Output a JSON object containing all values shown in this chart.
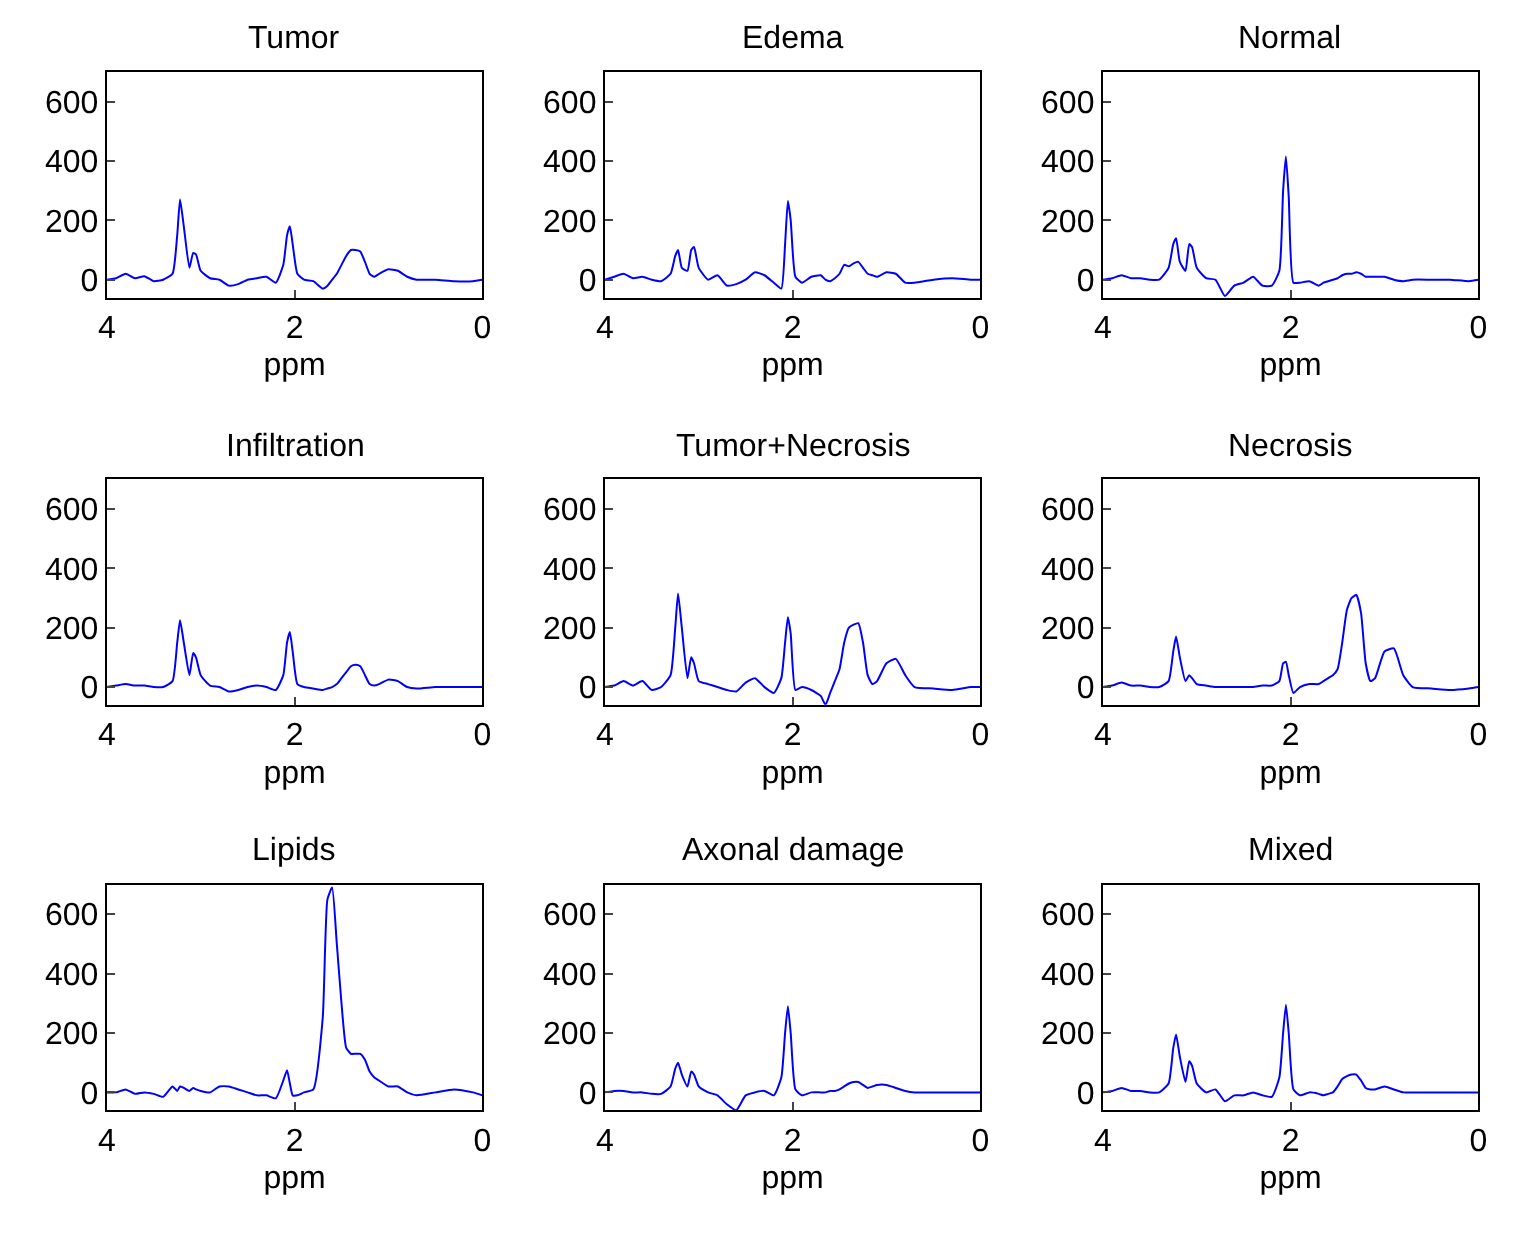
{
  "chart_data": [
    {
      "type": "line",
      "title": "Tumor",
      "xlabel": "ppm",
      "color": "#0000ff",
      "xlim": [
        4,
        0
      ],
      "xticks": [
        4,
        2,
        0
      ],
      "ylim": [
        -60,
        700
      ],
      "yticks": [
        0,
        200,
        400,
        600
      ],
      "x": [
        4,
        3.9,
        3.8,
        3.7,
        3.6,
        3.5,
        3.4,
        3.3,
        3.25,
        3.22,
        3.18,
        3.12,
        3.08,
        3.05,
        3.0,
        2.9,
        2.8,
        2.7,
        2.6,
        2.5,
        2.4,
        2.3,
        2.2,
        2.12,
        2.08,
        2.05,
        2.02,
        1.97,
        1.9,
        1.8,
        1.7,
        1.65,
        1.6,
        1.55,
        1.5,
        1.45,
        1.4,
        1.35,
        1.3,
        1.25,
        1.2,
        1.15,
        1.1,
        1.0,
        0.9,
        0.8,
        0.7,
        0.5,
        0.3,
        0.1,
        0
      ],
      "values": [
        0,
        5,
        20,
        5,
        12,
        -5,
        0,
        20,
        150,
        270,
        180,
        40,
        90,
        85,
        30,
        5,
        0,
        -20,
        -15,
        0,
        5,
        10,
        -10,
        50,
        150,
        180,
        120,
        20,
        0,
        -5,
        -30,
        -20,
        0,
        20,
        50,
        80,
        100,
        100,
        95,
        60,
        20,
        10,
        20,
        35,
        30,
        10,
        0,
        0,
        -5,
        -5,
        0
      ]
    },
    {
      "type": "line",
      "title": "Edema",
      "xlabel": "ppm",
      "color": "#0000ff",
      "xlim": [
        4,
        0
      ],
      "xticks": [
        4,
        2,
        0
      ],
      "ylim": [
        -60,
        700
      ],
      "yticks": [
        0,
        200,
        400,
        600
      ],
      "x": [
        4,
        3.9,
        3.8,
        3.7,
        3.6,
        3.5,
        3.4,
        3.3,
        3.25,
        3.22,
        3.18,
        3.12,
        3.08,
        3.05,
        3.0,
        2.9,
        2.8,
        2.7,
        2.6,
        2.5,
        2.4,
        2.3,
        2.2,
        2.12,
        2.08,
        2.05,
        2.02,
        1.97,
        1.9,
        1.8,
        1.7,
        1.65,
        1.6,
        1.55,
        1.5,
        1.45,
        1.4,
        1.35,
        1.3,
        1.25,
        1.2,
        1.15,
        1.1,
        1.0,
        0.9,
        0.8,
        0.7,
        0.5,
        0.3,
        0.1,
        0
      ],
      "values": [
        0,
        10,
        20,
        5,
        10,
        0,
        -5,
        20,
        80,
        100,
        40,
        30,
        100,
        110,
        40,
        0,
        15,
        -20,
        -15,
        0,
        25,
        15,
        -10,
        -30,
        120,
        265,
        200,
        10,
        -10,
        10,
        15,
        0,
        -5,
        5,
        20,
        50,
        45,
        55,
        60,
        40,
        20,
        15,
        10,
        25,
        20,
        -10,
        -10,
        0,
        5,
        0,
        0
      ]
    },
    {
      "type": "line",
      "title": "Normal",
      "xlabel": "ppm",
      "color": "#0000ff",
      "xlim": [
        4,
        0
      ],
      "xticks": [
        4,
        2,
        0
      ],
      "ylim": [
        -60,
        700
      ],
      "yticks": [
        0,
        200,
        400,
        600
      ],
      "x": [
        4,
        3.9,
        3.8,
        3.7,
        3.6,
        3.5,
        3.4,
        3.3,
        3.25,
        3.22,
        3.18,
        3.12,
        3.08,
        3.05,
        3.0,
        2.9,
        2.8,
        2.7,
        2.6,
        2.5,
        2.4,
        2.3,
        2.2,
        2.12,
        2.08,
        2.05,
        2.02,
        1.97,
        1.9,
        1.8,
        1.7,
        1.65,
        1.6,
        1.55,
        1.5,
        1.45,
        1.4,
        1.35,
        1.3,
        1.25,
        1.2,
        1.15,
        1.1,
        1.0,
        0.9,
        0.8,
        0.7,
        0.5,
        0.3,
        0.1,
        0
      ],
      "values": [
        0,
        5,
        15,
        5,
        5,
        0,
        0,
        40,
        120,
        140,
        60,
        30,
        120,
        110,
        40,
        5,
        0,
        -55,
        -20,
        -10,
        10,
        -20,
        -20,
        30,
        300,
        415,
        280,
        -10,
        -10,
        -5,
        -20,
        -10,
        -5,
        0,
        5,
        15,
        20,
        20,
        25,
        20,
        10,
        10,
        10,
        10,
        0,
        -5,
        0,
        0,
        0,
        -5,
        0
      ]
    },
    {
      "type": "line",
      "title": "Infiltration",
      "xlabel": "ppm",
      "color": "#0000ff",
      "xlim": [
        4,
        0
      ],
      "xticks": [
        4,
        2,
        0
      ],
      "ylim": [
        -60,
        700
      ],
      "yticks": [
        0,
        200,
        400,
        600
      ],
      "x": [
        4,
        3.9,
        3.8,
        3.7,
        3.6,
        3.5,
        3.4,
        3.3,
        3.25,
        3.22,
        3.18,
        3.12,
        3.08,
        3.05,
        3.0,
        2.9,
        2.8,
        2.7,
        2.6,
        2.5,
        2.4,
        2.3,
        2.2,
        2.12,
        2.08,
        2.05,
        2.02,
        1.97,
        1.9,
        1.8,
        1.7,
        1.65,
        1.6,
        1.55,
        1.5,
        1.45,
        1.4,
        1.35,
        1.3,
        1.25,
        1.2,
        1.15,
        1.1,
        1.0,
        0.9,
        0.8,
        0.7,
        0.5,
        0.3,
        0.1,
        0
      ],
      "values": [
        0,
        5,
        10,
        5,
        5,
        0,
        0,
        20,
        150,
        225,
        150,
        40,
        115,
        100,
        40,
        5,
        0,
        -15,
        -10,
        0,
        5,
        0,
        -10,
        40,
        150,
        185,
        120,
        10,
        0,
        -5,
        -10,
        -5,
        0,
        10,
        30,
        50,
        70,
        75,
        70,
        40,
        10,
        5,
        10,
        25,
        20,
        0,
        -5,
        0,
        0,
        0,
        0
      ]
    },
    {
      "type": "line",
      "title": "Tumor+Necrosis",
      "xlabel": "ppm",
      "color": "#0000ff",
      "xlim": [
        4,
        0
      ],
      "xticks": [
        4,
        2,
        0
      ],
      "ylim": [
        -60,
        700
      ],
      "yticks": [
        0,
        200,
        400,
        600
      ],
      "x": [
        4,
        3.9,
        3.8,
        3.7,
        3.6,
        3.5,
        3.4,
        3.3,
        3.25,
        3.22,
        3.18,
        3.12,
        3.08,
        3.05,
        3.0,
        2.9,
        2.8,
        2.7,
        2.6,
        2.5,
        2.4,
        2.3,
        2.2,
        2.12,
        2.08,
        2.05,
        2.02,
        1.97,
        1.9,
        1.8,
        1.7,
        1.65,
        1.6,
        1.55,
        1.5,
        1.45,
        1.4,
        1.35,
        1.3,
        1.25,
        1.2,
        1.15,
        1.1,
        1.0,
        0.9,
        0.8,
        0.7,
        0.5,
        0.3,
        0.1,
        0
      ],
      "values": [
        0,
        5,
        20,
        5,
        20,
        -10,
        0,
        40,
        200,
        315,
        200,
        30,
        100,
        80,
        20,
        10,
        0,
        -10,
        -15,
        15,
        30,
        0,
        -20,
        30,
        150,
        235,
        180,
        -10,
        0,
        -10,
        -30,
        -60,
        -20,
        20,
        60,
        150,
        200,
        210,
        215,
        150,
        40,
        10,
        20,
        80,
        95,
        40,
        0,
        -5,
        -10,
        0,
        0
      ]
    },
    {
      "type": "line",
      "title": "Necrosis",
      "xlabel": "ppm",
      "color": "#0000ff",
      "xlim": [
        4,
        0
      ],
      "xticks": [
        4,
        2,
        0
      ],
      "ylim": [
        -60,
        700
      ],
      "yticks": [
        0,
        200,
        400,
        600
      ],
      "x": [
        4,
        3.9,
        3.8,
        3.7,
        3.6,
        3.5,
        3.4,
        3.3,
        3.25,
        3.22,
        3.18,
        3.12,
        3.08,
        3.05,
        3.0,
        2.9,
        2.8,
        2.7,
        2.6,
        2.5,
        2.4,
        2.3,
        2.2,
        2.12,
        2.08,
        2.05,
        2.02,
        1.97,
        1.9,
        1.8,
        1.7,
        1.65,
        1.6,
        1.55,
        1.5,
        1.45,
        1.4,
        1.35,
        1.3,
        1.25,
        1.2,
        1.15,
        1.1,
        1.0,
        0.9,
        0.8,
        0.7,
        0.5,
        0.3,
        0.1,
        0
      ],
      "values": [
        0,
        5,
        15,
        5,
        5,
        0,
        0,
        20,
        120,
        170,
        100,
        20,
        40,
        30,
        10,
        5,
        0,
        0,
        0,
        0,
        0,
        5,
        5,
        20,
        80,
        85,
        40,
        -20,
        0,
        10,
        10,
        20,
        30,
        40,
        60,
        150,
        260,
        300,
        310,
        250,
        80,
        20,
        30,
        120,
        130,
        40,
        0,
        -5,
        -10,
        -5,
        0
      ]
    },
    {
      "type": "line",
      "title": "Lipids",
      "xlabel": "ppm",
      "color": "#0000ff",
      "xlim": [
        4,
        0
      ],
      "xticks": [
        4,
        2,
        0
      ],
      "ylim": [
        -60,
        700
      ],
      "yticks": [
        0,
        200,
        400,
        600
      ],
      "x": [
        4,
        3.9,
        3.8,
        3.7,
        3.6,
        3.5,
        3.4,
        3.3,
        3.25,
        3.22,
        3.18,
        3.12,
        3.08,
        3.05,
        3.0,
        2.9,
        2.8,
        2.7,
        2.6,
        2.5,
        2.4,
        2.3,
        2.2,
        2.12,
        2.08,
        2.05,
        2.02,
        1.97,
        1.9,
        1.8,
        1.7,
        1.65,
        1.6,
        1.55,
        1.5,
        1.45,
        1.4,
        1.35,
        1.3,
        1.25,
        1.2,
        1.15,
        1.1,
        1.0,
        0.9,
        0.8,
        0.7,
        0.5,
        0.3,
        0.1,
        0
      ],
      "values": [
        0,
        0,
        10,
        -5,
        0,
        -5,
        -15,
        20,
        5,
        20,
        15,
        5,
        15,
        10,
        5,
        0,
        20,
        20,
        10,
        0,
        -10,
        -10,
        -20,
        40,
        75,
        30,
        -10,
        -10,
        0,
        10,
        250,
        650,
        690,
        500,
        300,
        150,
        130,
        130,
        130,
        110,
        70,
        50,
        40,
        20,
        20,
        0,
        -10,
        0,
        10,
        0,
        -10
      ]
    },
    {
      "type": "line",
      "title": "Axonal damage",
      "xlabel": "ppm",
      "color": "#0000ff",
      "xlim": [
        4,
        0
      ],
      "xticks": [
        4,
        2,
        0
      ],
      "ylim": [
        -60,
        700
      ],
      "yticks": [
        0,
        200,
        400,
        600
      ],
      "x": [
        4,
        3.9,
        3.8,
        3.7,
        3.6,
        3.5,
        3.4,
        3.3,
        3.25,
        3.22,
        3.18,
        3.12,
        3.08,
        3.05,
        3.0,
        2.9,
        2.8,
        2.7,
        2.6,
        2.5,
        2.4,
        2.3,
        2.2,
        2.12,
        2.08,
        2.05,
        2.02,
        1.97,
        1.9,
        1.8,
        1.7,
        1.65,
        1.6,
        1.55,
        1.5,
        1.45,
        1.4,
        1.35,
        1.3,
        1.25,
        1.2,
        1.15,
        1.1,
        1.0,
        0.9,
        0.8,
        0.7,
        0.5,
        0.3,
        0.1,
        0
      ],
      "values": [
        0,
        5,
        5,
        0,
        0,
        -5,
        -5,
        20,
        80,
        100,
        60,
        20,
        70,
        60,
        20,
        0,
        -10,
        -40,
        -60,
        -10,
        0,
        5,
        -10,
        50,
        200,
        290,
        200,
        10,
        -10,
        0,
        0,
        0,
        5,
        5,
        10,
        20,
        30,
        35,
        35,
        25,
        15,
        20,
        25,
        25,
        15,
        5,
        0,
        0,
        0,
        0,
        0
      ]
    },
    {
      "type": "line",
      "title": "Mixed",
      "xlabel": "ppm",
      "color": "#0000ff",
      "xlim": [
        4,
        0
      ],
      "xticks": [
        4,
        2,
        0
      ],
      "ylim": [
        -60,
        700
      ],
      "yticks": [
        0,
        200,
        400,
        600
      ],
      "x": [
        4,
        3.9,
        3.8,
        3.7,
        3.6,
        3.5,
        3.4,
        3.3,
        3.25,
        3.22,
        3.18,
        3.12,
        3.08,
        3.05,
        3.0,
        2.9,
        2.8,
        2.7,
        2.6,
        2.5,
        2.4,
        2.3,
        2.2,
        2.12,
        2.08,
        2.05,
        2.02,
        1.97,
        1.9,
        1.8,
        1.7,
        1.65,
        1.6,
        1.55,
        1.5,
        1.45,
        1.4,
        1.35,
        1.3,
        1.25,
        1.2,
        1.15,
        1.1,
        1.0,
        0.9,
        0.8,
        0.7,
        0.5,
        0.3,
        0.1,
        0
      ],
      "values": [
        0,
        5,
        15,
        5,
        5,
        0,
        0,
        30,
        150,
        195,
        120,
        35,
        105,
        90,
        30,
        0,
        10,
        -30,
        -10,
        -10,
        0,
        -10,
        -15,
        50,
        200,
        295,
        200,
        10,
        -10,
        0,
        -5,
        -10,
        -5,
        0,
        20,
        45,
        55,
        60,
        60,
        40,
        15,
        10,
        10,
        20,
        10,
        0,
        0,
        0,
        0,
        0,
        0
      ]
    }
  ]
}
